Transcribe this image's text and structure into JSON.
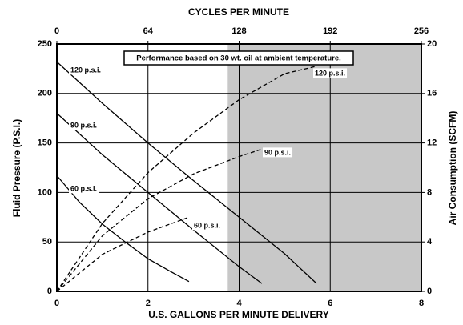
{
  "chart_data": {
    "type": "line",
    "title": "CYCLES PER MINUTE",
    "xlabel": "U.S. GALLONS PER MINUTE DELIVERY",
    "ylabel": "Fluid Pressure (P.S.I.)",
    "y2label": "Air Consumption (SCFM)",
    "annotation": "Performance based on 30 wt. oil at ambient temperature.",
    "xlim": [
      0,
      8
    ],
    "xticks": [
      0,
      2,
      4,
      6,
      8
    ],
    "x2lim": [
      0,
      256
    ],
    "x2ticks": [
      0,
      64,
      128,
      192,
      256
    ],
    "ylim": [
      0,
      250
    ],
    "yticks": [
      0,
      50,
      100,
      150,
      200,
      250
    ],
    "y2lim": [
      0,
      20
    ],
    "y2ticks": [
      0,
      4,
      8,
      12,
      16,
      20
    ],
    "grid": true,
    "shade_xrange": [
      3.75,
      8
    ],
    "shade_color": "#c8c8c8",
    "series": [
      {
        "name": "120 p.s.i.",
        "color": "#000000",
        "dash": false,
        "x": [
          0,
          1,
          2,
          3,
          4,
          5,
          5.7
        ],
        "values": [
          232,
          190,
          150,
          112,
          75,
          38,
          8
        ]
      },
      {
        "name": "90 p.s.i.",
        "color": "#000000",
        "dash": false,
        "x": [
          0,
          1,
          2,
          3,
          4,
          4.5
        ],
        "values": [
          180,
          138,
          100,
          62,
          25,
          8
        ]
      },
      {
        "name": "60 p.s.i.",
        "color": "#000000",
        "dash": false,
        "x": [
          0,
          0.5,
          1,
          1.5,
          2,
          2.5,
          2.9
        ],
        "values": [
          117,
          90,
          68,
          50,
          33,
          20,
          10
        ]
      },
      {
        "name": "120 p.s.i.",
        "color": "#000000",
        "dash": true,
        "axis": "y2",
        "x": [
          0,
          1,
          2,
          3,
          4,
          5,
          5.7
        ],
        "values": [
          0,
          5.5,
          9.6,
          12.8,
          15.5,
          17.6,
          18.2
        ]
      },
      {
        "name": "90 p.s.i.",
        "color": "#000000",
        "dash": true,
        "axis": "y2",
        "x": [
          0,
          1,
          2,
          3,
          4,
          4.5
        ],
        "values": [
          0,
          4.5,
          7.5,
          9.5,
          10.9,
          11.5
        ]
      },
      {
        "name": "60 p.s.i.",
        "color": "#000000",
        "dash": true,
        "axis": "y2",
        "x": [
          0,
          1,
          2,
          2.9
        ],
        "values": [
          0,
          3,
          4.8,
          6
        ]
      }
    ]
  }
}
